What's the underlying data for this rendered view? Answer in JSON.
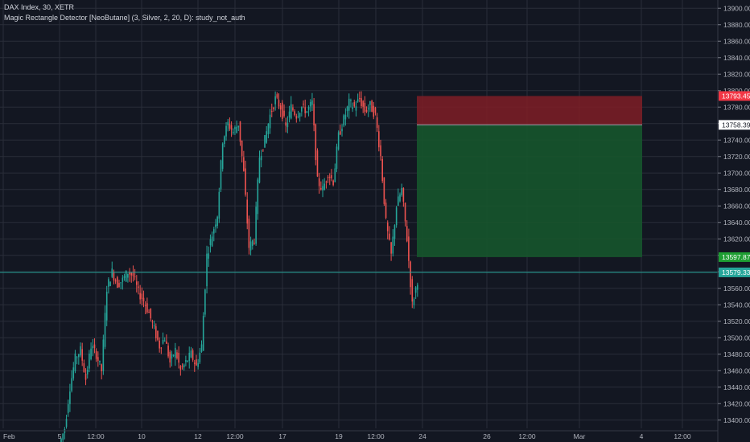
{
  "header": {
    "symbol_line": "DAX Index, 30, XETR",
    "indicator_line": "Magic Rectangle Detector [NeoButane] (3, Silver, 2, 20, D): study_not_auth"
  },
  "colors": {
    "background": "#131722",
    "grid": "#2a2e39",
    "up": "#26a69a",
    "down": "#ef5350",
    "stop_zone": "#7f1d26",
    "target_zone": "#16552c",
    "stop_label": "#f23645",
    "entry_label": "#ffffff",
    "target_label": "#1e9e32",
    "current_label": "#26a69a"
  },
  "chart_data": {
    "type": "candlestick",
    "y_axis": {
      "min": 13390,
      "max": 13910,
      "ticks": [
        13400,
        13420,
        13440,
        13460,
        13480,
        13500,
        13520,
        13540,
        13560,
        13580,
        13600,
        13620,
        13640,
        13660,
        13680,
        13700,
        13720,
        13740,
        13760,
        13780,
        13800,
        13820,
        13840,
        13860,
        13880,
        13900
      ],
      "tick_labels": [
        "13400.000",
        "13420.000",
        "13440.000",
        "13460.000",
        "13480.000",
        "13500.000",
        "13520.000",
        "13540.000",
        "13560.000",
        "13580.000",
        "13600.000",
        "13620.000",
        "13640.000",
        "13660.000",
        "13680.000",
        "13700.000",
        "13720.000",
        "13740.000",
        "13760.000",
        "13780.000",
        "13800.000",
        "13820.000",
        "13840.000",
        "13860.000",
        "13880.000",
        "13900.000"
      ]
    },
    "x_axis": {
      "labels": [
        "Feb",
        "5",
        "12:00",
        "10",
        "12",
        "12:00",
        "17",
        "19",
        "12:00",
        "24",
        "26",
        "12:00",
        "Mar",
        "4",
        "12:00"
      ]
    },
    "price_labels": {
      "stop": "13793.453",
      "entry": "13758.392",
      "target": "13597.870",
      "current": "13579.330"
    },
    "levels": {
      "stop": 13793.453,
      "entry": 13758.392,
      "target": 13597.87,
      "current": 13579.33
    },
    "ohlc_waypoints": [
      13370,
      13390,
      13440,
      13475,
      13485,
      13450,
      13490,
      13480,
      13460,
      13560,
      13580,
      13565,
      13570,
      13580,
      13575,
      13555,
      13545,
      13530,
      13510,
      13490,
      13500,
      13470,
      13485,
      13460,
      13470,
      13480,
      13465,
      13490,
      13600,
      13625,
      13650,
      13740,
      13760,
      13750,
      13760,
      13700,
      13610,
      13620,
      13720,
      13740,
      13770,
      13790,
      13780,
      13755,
      13780,
      13770,
      13780,
      13775,
      13785,
      13690,
      13680,
      13700,
      13690,
      13745,
      13765,
      13785,
      13780,
      13790,
      13775,
      13782,
      13770,
      13720,
      13640,
      13600,
      13660,
      13680,
      13620,
      13540,
      13570
    ]
  }
}
